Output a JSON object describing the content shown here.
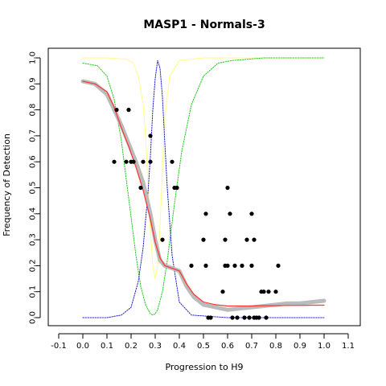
{
  "chart_data": {
    "type": "scatter",
    "title": "MASP1 - Normals-3",
    "xlabel": "Progression to H9",
    "ylabel": "Frequency of Detection",
    "xlim": [
      -0.1,
      1.1
    ],
    "ylim": [
      0.0,
      1.0
    ],
    "x_ticks": [
      "-0.1",
      "0.0",
      "0.1",
      "0.2",
      "0.3",
      "0.4",
      "0.5",
      "0.6",
      "0.7",
      "0.8",
      "0.9",
      "1.0",
      "1.1"
    ],
    "y_ticks": [
      "0.0",
      "0.1",
      "0.2",
      "0.3",
      "0.4",
      "0.5",
      "0.6",
      "0.7",
      "0.8",
      "0.9",
      "1.0"
    ],
    "colors": {
      "points": "#000000",
      "smooth": "#bbbbbb",
      "fit": "#ff3333",
      "blue": "#2222cc",
      "green": "#22cc22",
      "yellow": "#ffff66"
    },
    "series": [
      {
        "kind": "points",
        "x": [
          0.13,
          0.14,
          0.18,
          0.19,
          0.2,
          0.21,
          0.24,
          0.25,
          0.28,
          0.28,
          0.33,
          0.37,
          0.38,
          0.39,
          0.45,
          0.5,
          0.51,
          0.51,
          0.52,
          0.53,
          0.58,
          0.59,
          0.59,
          0.6,
          0.6,
          0.61,
          0.62,
          0.63,
          0.64,
          0.66,
          0.67,
          0.68,
          0.69,
          0.7,
          0.7,
          0.71,
          0.71,
          0.72,
          0.73,
          0.74,
          0.75,
          0.76,
          0.77,
          0.8,
          0.81
        ],
        "y": [
          0.6,
          0.8,
          0.6,
          0.8,
          0.6,
          0.6,
          0.5,
          0.6,
          0.7,
          0.6,
          0.3,
          0.6,
          0.5,
          0.5,
          0.2,
          0.3,
          0.4,
          0.2,
          0.0,
          0.0,
          0.1,
          0.3,
          0.2,
          0.5,
          0.2,
          0.4,
          0.0,
          0.2,
          0.0,
          0.2,
          0.0,
          0.3,
          0.0,
          0.4,
          0.2,
          0.0,
          0.3,
          0.0,
          0.0,
          0.1,
          0.1,
          0.0,
          0.1,
          0.1,
          0.2
        ]
      },
      {
        "kind": "smooth",
        "x": [
          0.0,
          0.05,
          0.1,
          0.13,
          0.16,
          0.19,
          0.22,
          0.25,
          0.28,
          0.3,
          0.32,
          0.34,
          0.37,
          0.4,
          0.43,
          0.46,
          0.5,
          0.55,
          0.6,
          0.65,
          0.7,
          0.75,
          0.8,
          0.85,
          0.9,
          0.95,
          1.0
        ],
        "y": [
          0.91,
          0.9,
          0.86,
          0.8,
          0.74,
          0.67,
          0.6,
          0.52,
          0.4,
          0.3,
          0.22,
          0.2,
          0.19,
          0.18,
          0.12,
          0.08,
          0.05,
          0.04,
          0.03,
          0.035,
          0.04,
          0.045,
          0.05,
          0.055,
          0.055,
          0.06,
          0.065
        ]
      },
      {
        "kind": "fit",
        "x": [
          0.0,
          0.05,
          0.1,
          0.13,
          0.16,
          0.19,
          0.22,
          0.25,
          0.28,
          0.3,
          0.32,
          0.34,
          0.37,
          0.4,
          0.43,
          0.46,
          0.5,
          0.55,
          0.6,
          0.65,
          0.7,
          0.75,
          0.8,
          0.85,
          0.9,
          0.95,
          1.0
        ],
        "y": [
          0.91,
          0.9,
          0.87,
          0.81,
          0.73,
          0.66,
          0.58,
          0.49,
          0.38,
          0.29,
          0.23,
          0.2,
          0.19,
          0.18,
          0.13,
          0.09,
          0.06,
          0.05,
          0.045,
          0.045,
          0.045,
          0.046,
          0.046,
          0.047,
          0.047,
          0.048,
          0.048
        ]
      },
      {
        "kind": "blue",
        "x": [
          0.0,
          0.1,
          0.16,
          0.2,
          0.23,
          0.25,
          0.27,
          0.28,
          0.29,
          0.3,
          0.31,
          0.32,
          0.33,
          0.34,
          0.35,
          0.37,
          0.4,
          0.45,
          0.6,
          1.0
        ],
        "y": [
          0.0,
          0.0,
          0.01,
          0.04,
          0.14,
          0.27,
          0.48,
          0.62,
          0.8,
          0.92,
          0.99,
          0.96,
          0.85,
          0.67,
          0.5,
          0.24,
          0.06,
          0.01,
          0.0,
          0.0
        ]
      },
      {
        "kind": "green",
        "x": [
          0.0,
          0.06,
          0.1,
          0.13,
          0.16,
          0.19,
          0.22,
          0.24,
          0.26,
          0.28,
          0.29,
          0.3,
          0.31,
          0.33,
          0.35,
          0.38,
          0.41,
          0.45,
          0.5,
          0.56,
          0.62,
          0.75,
          1.0
        ],
        "y": [
          0.98,
          0.97,
          0.93,
          0.84,
          0.68,
          0.46,
          0.24,
          0.12,
          0.05,
          0.015,
          0.01,
          0.015,
          0.03,
          0.1,
          0.22,
          0.44,
          0.64,
          0.82,
          0.93,
          0.98,
          0.99,
          1.0,
          1.0
        ]
      },
      {
        "kind": "yellow",
        "x": [
          0.0,
          0.1,
          0.18,
          0.21,
          0.23,
          0.25,
          0.26,
          0.27,
          0.28,
          0.29,
          0.3,
          0.31,
          0.32,
          0.33,
          0.34,
          0.36,
          0.4,
          0.5,
          1.0
        ],
        "y": [
          1.0,
          1.0,
          0.995,
          0.98,
          0.93,
          0.82,
          0.7,
          0.52,
          0.33,
          0.2,
          0.15,
          0.2,
          0.35,
          0.57,
          0.77,
          0.93,
          0.99,
          1.0,
          1.0
        ]
      }
    ]
  }
}
